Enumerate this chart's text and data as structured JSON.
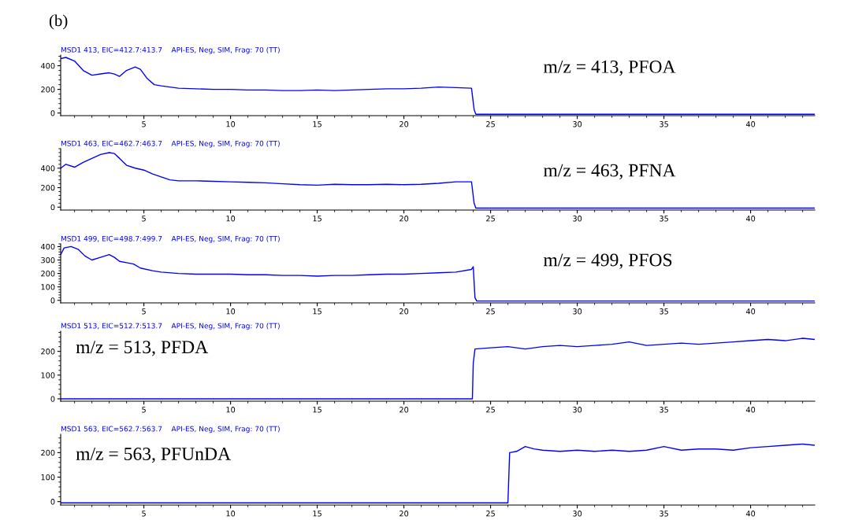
{
  "chart_data": [
    {
      "type": "line",
      "title": "(b)",
      "annotations": [
        "MSD1 413, EIC=412.7:413.7    API-ES, Neg, SIM, Frag: 70 (TT)",
        "m/z = 413, PFOA"
      ],
      "xlim": [
        0.2,
        43.7
      ],
      "xticks": [
        5,
        10,
        15,
        20,
        25,
        30,
        35,
        40
      ],
      "ylim": [
        -22,
        490
      ],
      "yticks": [
        0,
        200,
        400
      ],
      "grid": false,
      "legend": false,
      "series": [
        {
          "color": "#0000ff",
          "x": [
            0.2,
            0.5,
            1.0,
            1.5,
            2.0,
            2.5,
            3.0,
            3.3,
            3.6,
            4.0,
            4.5,
            4.8,
            5.2,
            5.6,
            6.0,
            6.5,
            7,
            8,
            9,
            10,
            11,
            12,
            13,
            14,
            15,
            16,
            17,
            18,
            19,
            20,
            21,
            22,
            23,
            23.9,
            24.05,
            24.15,
            25,
            43.7
          ],
          "values": [
            460,
            470,
            440,
            360,
            320,
            330,
            340,
            330,
            310,
            360,
            390,
            370,
            290,
            240,
            230,
            220,
            210,
            205,
            200,
            200,
            195,
            195,
            190,
            190,
            195,
            190,
            195,
            200,
            205,
            205,
            210,
            220,
            215,
            210,
            30,
            -10,
            -10,
            -10
          ]
        }
      ]
    },
    {
      "type": "line",
      "annotations": [
        "MSD1 463, EIC=462.7:463.7    API-ES, Neg, SIM, Frag: 70 (TT)",
        "m/z = 463, PFNA"
      ],
      "xlim": [
        0.2,
        43.7
      ],
      "xticks": [
        5,
        10,
        15,
        20,
        25,
        30,
        35,
        40
      ],
      "ylim": [
        -30,
        600
      ],
      "yticks": [
        0,
        200,
        400
      ],
      "grid": false,
      "legend": false,
      "series": [
        {
          "color": "#0000ff",
          "x": [
            0.2,
            0.5,
            1.0,
            1.5,
            2.0,
            2.5,
            3.0,
            3.3,
            3.6,
            4.0,
            4.5,
            5.0,
            5.5,
            6.0,
            6.5,
            7,
            8,
            9,
            10,
            11,
            12,
            13,
            14,
            15,
            16,
            17,
            18,
            19,
            20,
            21,
            22,
            23,
            23.9,
            24.05,
            24.15,
            43.7
          ],
          "values": [
            400,
            440,
            410,
            460,
            500,
            540,
            560,
            550,
            500,
            430,
            400,
            380,
            340,
            310,
            280,
            270,
            270,
            265,
            260,
            255,
            250,
            240,
            230,
            225,
            235,
            230,
            230,
            235,
            230,
            235,
            245,
            260,
            260,
            40,
            -10,
            -10
          ]
        }
      ]
    },
    {
      "type": "line",
      "annotations": [
        "MSD1 499, EIC=498.7:499.7    API-ES, Neg, SIM, Frag: 70 (TT)",
        "m/z = 499, PFOS"
      ],
      "xlim": [
        0.2,
        43.7
      ],
      "xticks": [
        5,
        10,
        15,
        20,
        25,
        30,
        35,
        40
      ],
      "ylim": [
        -19,
        420
      ],
      "yticks": [
        0,
        100,
        200,
        300,
        400
      ],
      "grid": false,
      "legend": false,
      "series": [
        {
          "color": "#0000ff",
          "x": [
            0.2,
            0.4,
            0.8,
            1.2,
            1.6,
            2.0,
            2.5,
            3.0,
            3.3,
            3.6,
            4.0,
            4.4,
            4.8,
            5.5,
            6.0,
            7,
            8,
            9,
            10,
            11,
            12,
            13,
            14,
            15,
            16,
            17,
            18,
            19,
            20,
            21,
            22,
            23,
            23.9,
            24.0,
            24.1,
            24.2,
            43.7
          ],
          "values": [
            340,
            390,
            400,
            380,
            330,
            300,
            320,
            340,
            320,
            290,
            280,
            270,
            240,
            220,
            210,
            200,
            195,
            195,
            195,
            190,
            190,
            185,
            185,
            180,
            185,
            185,
            190,
            195,
            195,
            200,
            205,
            210,
            230,
            250,
            20,
            -5,
            -5
          ]
        }
      ]
    },
    {
      "type": "line",
      "annotations": [
        "MSD1 513, EIC=512.7:513.7    API-ES, Neg, SIM, Frag: 70 (TT)",
        "m/z = 513, PFDA"
      ],
      "xlim": [
        0.2,
        43.7
      ],
      "xticks": [
        5,
        10,
        15,
        20,
        25,
        30,
        35,
        40
      ],
      "ylim": [
        -10,
        285
      ],
      "yticks": [
        0,
        100,
        200
      ],
      "grid": false,
      "legend": false,
      "series": [
        {
          "color": "#0000ff",
          "x": [
            0.2,
            23.95,
            24.0,
            24.1,
            25,
            26,
            27,
            28,
            29,
            30,
            31,
            32,
            33,
            34,
            35,
            36,
            37,
            38,
            39,
            40,
            41,
            42,
            43,
            43.7
          ],
          "values": [
            0,
            0,
            150,
            210,
            215,
            220,
            210,
            220,
            225,
            220,
            225,
            230,
            240,
            225,
            230,
            235,
            230,
            235,
            240,
            245,
            250,
            245,
            255,
            250
          ]
        }
      ]
    },
    {
      "type": "line",
      "annotations": [
        "MSD1 563, EIC=562.7:563.7    API-ES, Neg, SIM, Frag: 70 (TT)",
        "m/z = 563, PFUnDA"
      ],
      "xlim": [
        0.2,
        43.7
      ],
      "xticks": [
        5,
        10,
        15,
        20,
        25,
        30,
        35,
        40
      ],
      "ylim": [
        -14,
        275
      ],
      "yticks": [
        0,
        100,
        200
      ],
      "grid": false,
      "legend": false,
      "series": [
        {
          "color": "#0000ff",
          "x": [
            0.2,
            26.0,
            26.1,
            26.5,
            27,
            27.5,
            28,
            29,
            30,
            31,
            32,
            33,
            34,
            35,
            36,
            37,
            38,
            39,
            40,
            41,
            42,
            43,
            43.7
          ],
          "values": [
            -5,
            -5,
            200,
            205,
            225,
            215,
            210,
            205,
            210,
            205,
            210,
            205,
            210,
            225,
            210,
            215,
            215,
            210,
            220,
            225,
            230,
            235,
            230
          ]
        }
      ]
    }
  ]
}
